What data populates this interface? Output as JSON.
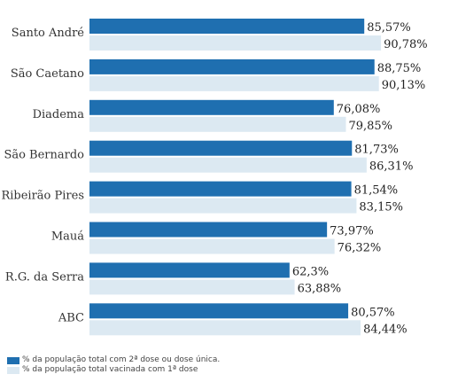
{
  "chart_data": {
    "type": "bar",
    "orientation": "horizontal",
    "categories": [
      "Santo André",
      "São Caetano",
      "Diadema",
      "São Bernardo",
      "Ribeirão Pires",
      "Mauá",
      "R.G. da Serra",
      "ABC"
    ],
    "series": [
      {
        "name": "% da população total com 2ª dose ou dose única.",
        "color": "#1f6fb0",
        "values": [
          85.57,
          88.75,
          76.08,
          81.73,
          81.54,
          73.97,
          62.3,
          80.57
        ],
        "labels": [
          "85,57%",
          "88,75%",
          "76,08%",
          "81,73%",
          "81,54%",
          "73,97%",
          "62,3%",
          "80,57%"
        ]
      },
      {
        "name": "% da população total vacinada com 1ª dose",
        "color": "#dce9f2",
        "values": [
          90.78,
          90.13,
          79.85,
          86.31,
          83.15,
          76.32,
          63.88,
          84.44
        ],
        "labels": [
          "90,78%",
          "90,13%",
          "79,85%",
          "86,31%",
          "83,15%",
          "76,32%",
          "63,88%",
          "84,44%"
        ]
      }
    ],
    "xlim": [
      0,
      100
    ],
    "grid": false,
    "legend_position": "bottom-left"
  }
}
